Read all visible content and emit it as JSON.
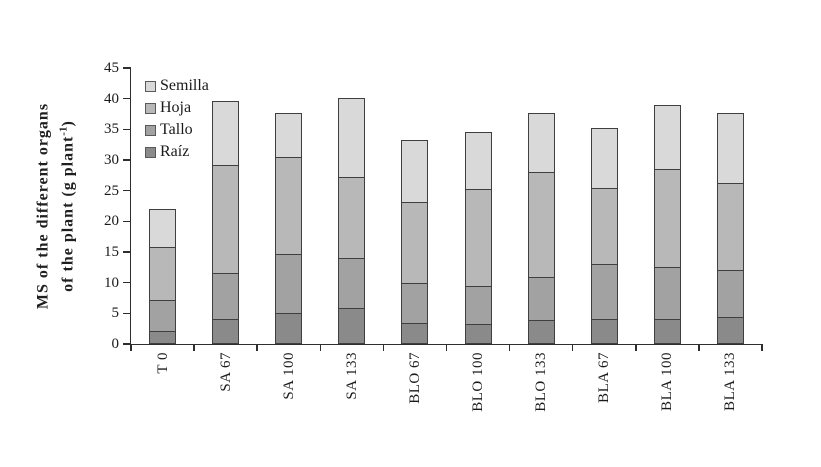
{
  "chart_data": {
    "type": "bar",
    "stacked": true,
    "title": "",
    "xlabel": "",
    "ylabel": "MS of the different organs of the plant (g plant-1)",
    "ylabel_lines": {
      "line1": "MS of the different organs",
      "line2_pre": "of the plant (g plant",
      "line2_sup": "-1",
      "line2_post": ")"
    },
    "categories": [
      "T 0",
      "SA 67",
      "SA 100",
      "SA 133",
      "BLO 67",
      "BLO 100",
      "BLO 133",
      "BLA 67",
      "BLA 100",
      "BLA 133"
    ],
    "series": [
      {
        "name": "Raíz",
        "color": "#8a8a8a",
        "values": [
          2.2,
          4.1,
          5.0,
          5.8,
          3.4,
          3.2,
          3.9,
          4.1,
          4.1,
          4.4
        ]
      },
      {
        "name": "Tallo",
        "color": "#a2a2a2",
        "values": [
          5.0,
          7.4,
          9.7,
          8.3,
          6.5,
          6.2,
          7.1,
          9.0,
          8.4,
          7.7
        ]
      },
      {
        "name": "Hoja",
        "color": "#b8b8b8",
        "values": [
          8.6,
          17.7,
          15.8,
          13.1,
          13.2,
          15.8,
          17.1,
          12.4,
          16.0,
          14.1
        ]
      },
      {
        "name": "Semilla",
        "color": "#d9d9d9",
        "values": [
          6.2,
          10.5,
          7.1,
          12.9,
          10.2,
          9.3,
          9.5,
          9.8,
          10.5,
          11.4
        ]
      }
    ],
    "totals": [
      22.0,
      39.7,
      37.6,
      40.1,
      33.3,
      34.5,
      37.6,
      35.3,
      39.0,
      37.6
    ],
    "legend_order": [
      "Semilla",
      "Hoja",
      "Tallo",
      "Raíz"
    ],
    "legend_position": "top-left-inside",
    "ylim": [
      0,
      45
    ],
    "yticks": [
      0,
      5,
      10,
      15,
      20,
      25,
      30,
      35,
      40,
      45
    ],
    "grid": false,
    "axis_color": "#2e2e2e",
    "segment_border_color": "#3f3f3f"
  }
}
